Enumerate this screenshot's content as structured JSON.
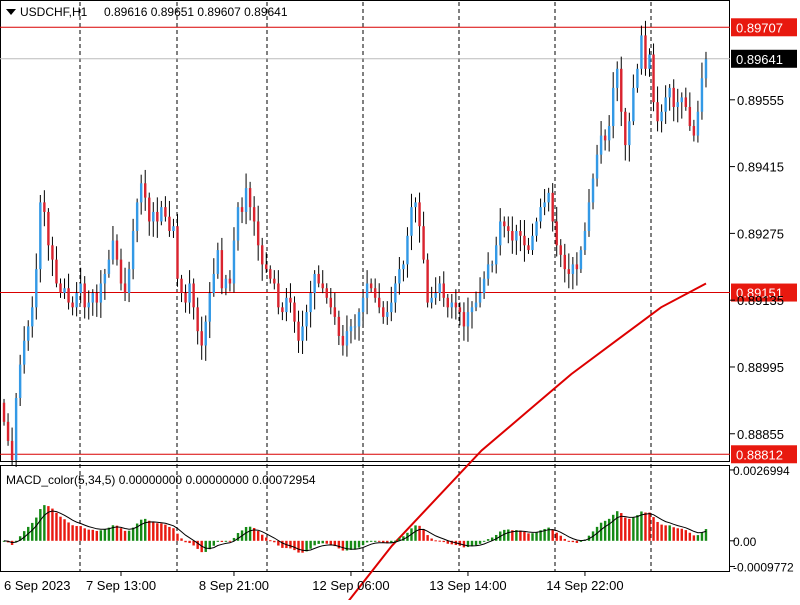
{
  "header": {
    "symbol_label": "USDCHF,H1",
    "ohlc_text": "0.89616 0.89651 0.89607 0.89641"
  },
  "colors": {
    "bull_candle": "#3399e6",
    "bear_candle": "#d9232e",
    "wick": "#000000",
    "ma_line": "#dd0000",
    "hline": "#d90000",
    "hline_label_bg": "#e8190f",
    "current_price_bg": "#000000",
    "macd_up": "#168a16",
    "macd_down": "#e8190f",
    "grid": "#000000"
  },
  "chart_data": [
    {
      "type": "candlestick",
      "symbol": "USDCHF",
      "timeframe": "H1",
      "price_ticks": [
        "0.89555",
        "0.89415",
        "0.89275",
        "0.89135",
        "0.88995",
        "0.88855"
      ],
      "price_tick_values": [
        0.89555,
        0.89415,
        0.89275,
        0.89135,
        0.88995,
        0.88855
      ],
      "ylim": [
        0.888,
        0.8976
      ],
      "horizontal_lines": [
        {
          "label": "0.89707",
          "value": 0.89707
        },
        {
          "label": "0.89151",
          "value": 0.89151
        },
        {
          "label": "0.88812",
          "value": 0.88812
        }
      ],
      "current_price": {
        "label": "0.89641",
        "value": 0.89641
      },
      "time_labels": [
        "6 Sep 2023",
        "7 Sep 13:00",
        "8 Sep 21:00",
        "12 Sep 06:00",
        "13 Sep 14:00",
        "14 Sep 22:00"
      ],
      "bar_count": 175,
      "closes": [
        0.8888,
        0.8884,
        0.888,
        0.8893,
        0.89,
        0.8905,
        0.8908,
        0.8912,
        0.892,
        0.8934,
        0.8932,
        0.8925,
        0.8922,
        0.8917,
        0.8915,
        0.8916,
        0.8913,
        0.8912,
        0.8915,
        0.8917,
        0.8912,
        0.8913,
        0.8915,
        0.8913,
        0.8917,
        0.8919,
        0.8922,
        0.8926,
        0.8922,
        0.8917,
        0.8915,
        0.892,
        0.8928,
        0.8934,
        0.8938,
        0.8935,
        0.893,
        0.8932,
        0.893,
        0.8933,
        0.8931,
        0.8928,
        0.8929,
        0.8918,
        0.8915,
        0.8913,
        0.8917,
        0.8912,
        0.8907,
        0.8904,
        0.8909,
        0.8915,
        0.8919,
        0.8924,
        0.8916,
        0.8918,
        0.8917,
        0.8926,
        0.8933,
        0.8932,
        0.8937,
        0.8933,
        0.893,
        0.8925,
        0.8921,
        0.892,
        0.8918,
        0.8917,
        0.8912,
        0.8911,
        0.8914,
        0.8913,
        0.8909,
        0.8905,
        0.8908,
        0.8911,
        0.8915,
        0.8919,
        0.8917,
        0.8916,
        0.8914,
        0.8912,
        0.891,
        0.8906,
        0.8904,
        0.8907,
        0.8908,
        0.8908,
        0.8911,
        0.8914,
        0.8917,
        0.8916,
        0.8914,
        0.8912,
        0.891,
        0.8911,
        0.8913,
        0.8917,
        0.892,
        0.8921,
        0.8927,
        0.8933,
        0.8934,
        0.8929,
        0.8922,
        0.8913,
        0.8914,
        0.8915,
        0.8917,
        0.8914,
        0.8912,
        0.8913,
        0.8912,
        0.8911,
        0.8908,
        0.8911,
        0.8912,
        0.8913,
        0.8915,
        0.8918,
        0.8921,
        0.8921,
        0.8925,
        0.893,
        0.8929,
        0.8928,
        0.8926,
        0.8928,
        0.8927,
        0.8925,
        0.8924,
        0.8927,
        0.893,
        0.8933,
        0.8934,
        0.8936,
        0.893,
        0.8925,
        0.8923,
        0.892,
        0.8919,
        0.8921,
        0.892,
        0.8924,
        0.8928,
        0.8934,
        0.8939,
        0.8944,
        0.8948,
        0.8947,
        0.895,
        0.8958,
        0.8962,
        0.8953,
        0.8946,
        0.8951,
        0.8958,
        0.8962,
        0.8969,
        0.8962,
        0.8965,
        0.8955,
        0.8951,
        0.8953,
        0.8956,
        0.8958,
        0.8954,
        0.8955,
        0.8956,
        0.8954,
        0.895,
        0.8948,
        0.8953,
        0.896,
        0.8964
      ],
      "ma": {
        "points_note": "",
        "values": [
          0.885,
          0.8862,
          0.8872,
          0.8882,
          0.889,
          0.8898,
          0.8905,
          0.8912,
          0.8917
        ]
      }
    },
    {
      "type": "bar",
      "indicator_label": "MACD_color(5,34,5) 0.00000000 0.00000000 0.00072954",
      "ticks": [
        "0.0026994",
        "0.00",
        "-0.0009772"
      ],
      "tick_values": [
        0.0026994,
        0.0,
        -0.0009772
      ],
      "ylim": [
        -0.00115,
        0.00285
      ]
    }
  ]
}
